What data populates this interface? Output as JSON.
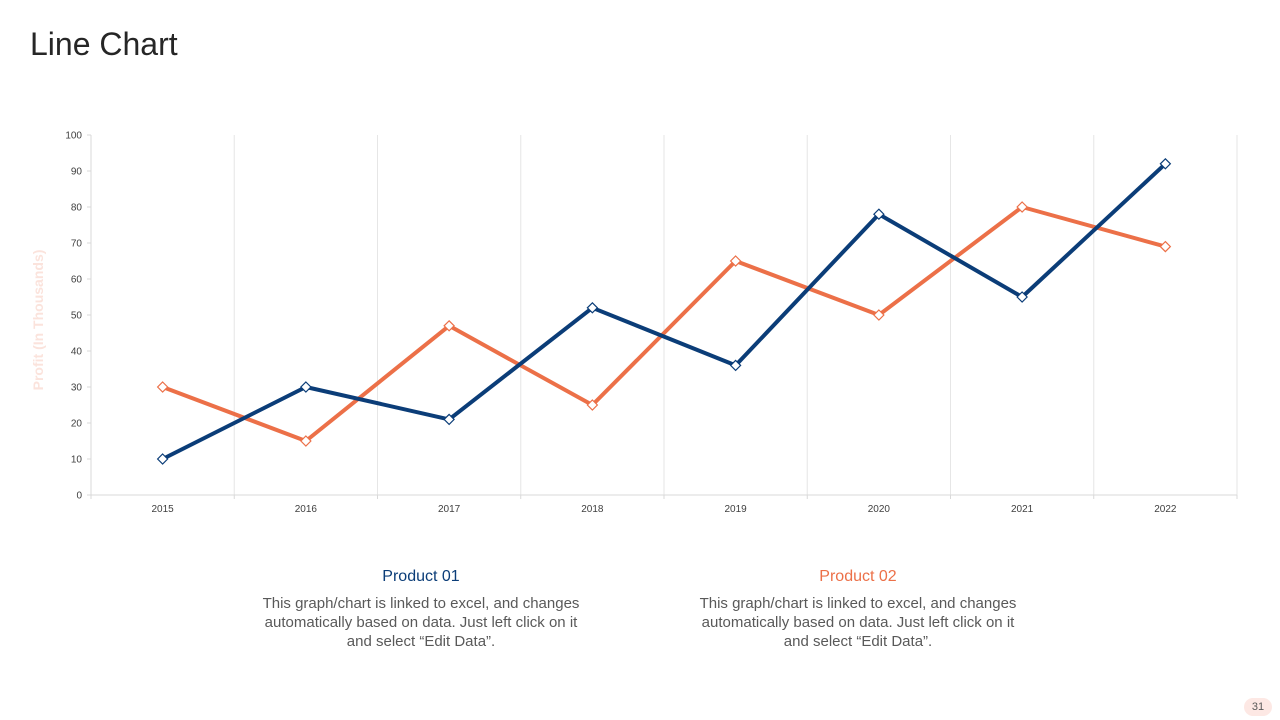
{
  "slide": {
    "title": "Line Chart",
    "page_number": "31"
  },
  "colors": {
    "product01": "#0b3d78",
    "product02": "#ec7048",
    "ylabel": "#fbe3dc",
    "grid": "#e6e6e6"
  },
  "legend": [
    {
      "title": "Product 01",
      "description": "This graph/chart is linked to excel, and changes automatically based on data. Just left click on it and select “Edit Data”."
    },
    {
      "title": "Product 02",
      "description": "This graph/chart is linked to excel, and changes automatically based on data. Just left click on it and select “Edit Data”."
    }
  ],
  "chart_data": {
    "type": "line",
    "title": "",
    "xlabel": "",
    "ylabel": "Profit (In Thousands)",
    "ylim": [
      0,
      100
    ],
    "yticks": [
      0,
      10,
      20,
      30,
      40,
      50,
      60,
      70,
      80,
      90,
      100
    ],
    "grid": "vertical",
    "marker": "diamond",
    "categories": [
      "2015",
      "2016",
      "2017",
      "2018",
      "2019",
      "2020",
      "2021",
      "2022"
    ],
    "series": [
      {
        "name": "Product 01",
        "values": [
          10,
          30,
          21,
          52,
          36,
          78,
          55,
          92
        ]
      },
      {
        "name": "Product 02",
        "values": [
          30,
          15,
          47,
          25,
          65,
          50,
          80,
          69
        ]
      }
    ]
  }
}
